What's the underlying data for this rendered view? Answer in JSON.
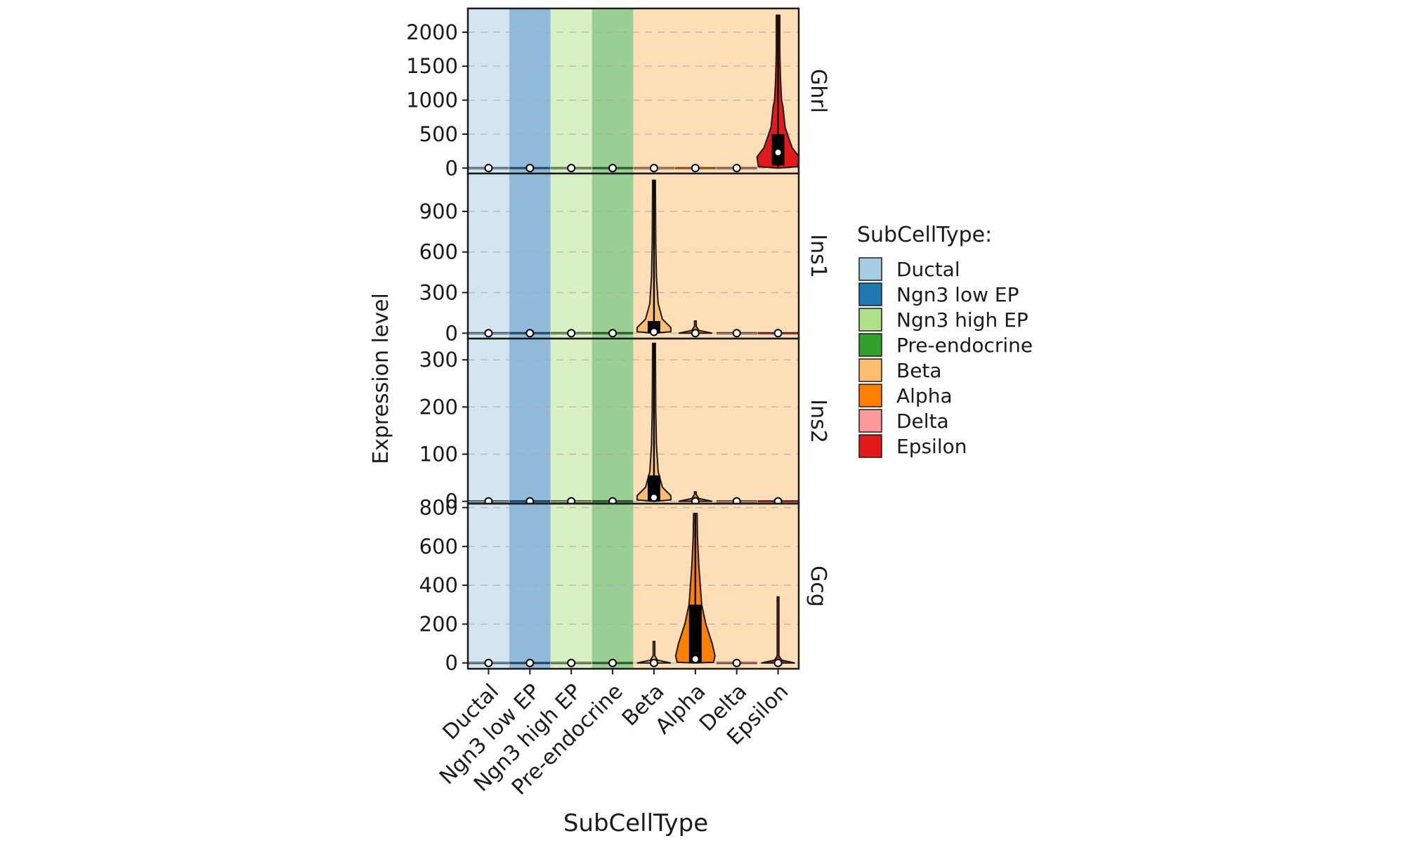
{
  "chart_data": {
    "type": "violin",
    "xlabel": "SubCellType",
    "ylabel": "Expression level",
    "categories": [
      "Ductal",
      "Ngn3 low EP",
      "Ngn3 high EP",
      "Pre-endocrine",
      "Beta",
      "Alpha",
      "Delta",
      "Epsilon"
    ],
    "category_colors": [
      "#A6CEE3",
      "#1F78B4",
      "#B2DF8A",
      "#33A02C",
      "#FDBF6F",
      "#FF7F00",
      "#FB9A99",
      "#E31A1C"
    ],
    "group_backgrounds": [
      {
        "color": "#D3E5F0",
        "from": 0,
        "to": 0
      },
      {
        "color": "#91B9DA",
        "from": 1,
        "to": 1
      },
      {
        "color": "#D9F0C4",
        "from": 2,
        "to": 2
      },
      {
        "color": "#99CF95",
        "from": 3,
        "to": 3
      },
      {
        "color": "#FDDEB7",
        "from": 4,
        "to": 7
      }
    ],
    "legend": {
      "title": "SubCellType:",
      "entries": [
        "Ductal",
        "Ngn3 low EP",
        "Ngn3 high EP",
        "Pre-endocrine",
        "Beta",
        "Alpha",
        "Delta",
        "Epsilon"
      ]
    },
    "panels": [
      {
        "gene": "Ghrl",
        "ylim": [
          -80,
          2350
        ],
        "yticks": [
          0,
          500,
          1000,
          1500,
          2000
        ],
        "violins": [
          {
            "category": 0,
            "max": 0,
            "median": 0,
            "q1": 0,
            "q3": 0,
            "shape": "flat"
          },
          {
            "category": 1,
            "max": 0,
            "median": 0,
            "q1": 0,
            "q3": 0,
            "shape": "flat"
          },
          {
            "category": 2,
            "max": 0,
            "median": 0,
            "q1": 0,
            "q3": 0,
            "shape": "flat"
          },
          {
            "category": 3,
            "max": 0,
            "median": 0,
            "q1": 0,
            "q3": 0,
            "shape": "flat"
          },
          {
            "category": 4,
            "max": 0,
            "median": 0,
            "q1": 0,
            "q3": 0,
            "shape": "flat"
          },
          {
            "category": 5,
            "max": 0,
            "median": 0,
            "q1": 0,
            "q3": 0,
            "shape": "flat"
          },
          {
            "category": 6,
            "max": 0,
            "median": 0,
            "q1": 0,
            "q3": 0,
            "shape": "flat"
          },
          {
            "category": 7,
            "max": 2250,
            "median": 230,
            "q1": 40,
            "q3": 500,
            "shape": "epsilon"
          }
        ]
      },
      {
        "gene": "Ins1",
        "ylim": [
          -40,
          1180
        ],
        "yticks": [
          0,
          300,
          600,
          900
        ],
        "violins": [
          {
            "category": 0,
            "max": 0,
            "median": 0,
            "q1": 0,
            "q3": 0,
            "shape": "flat"
          },
          {
            "category": 1,
            "max": 0,
            "median": 0,
            "q1": 0,
            "q3": 0,
            "shape": "flat"
          },
          {
            "category": 2,
            "max": 0,
            "median": 0,
            "q1": 0,
            "q3": 0,
            "shape": "flat"
          },
          {
            "category": 3,
            "max": 0,
            "median": 0,
            "q1": 0,
            "q3": 0,
            "shape": "flat"
          },
          {
            "category": 4,
            "max": 1130,
            "median": 10,
            "q1": 0,
            "q3": 90,
            "shape": "beta"
          },
          {
            "category": 5,
            "max": 90,
            "median": 0,
            "q1": 0,
            "q3": 0,
            "shape": "small"
          },
          {
            "category": 6,
            "max": 0,
            "median": 0,
            "q1": 0,
            "q3": 0,
            "shape": "flat"
          },
          {
            "category": 7,
            "max": 0,
            "median": 0,
            "q1": 0,
            "q3": 0,
            "shape": "flat"
          }
        ]
      },
      {
        "gene": "Ins2",
        "ylim": [
          -5,
          345
        ],
        "yticks": [
          0,
          100,
          200,
          300
        ],
        "violins": [
          {
            "category": 0,
            "max": 0,
            "median": 0,
            "q1": 0,
            "q3": 0,
            "shape": "flat"
          },
          {
            "category": 1,
            "max": 0,
            "median": 0,
            "q1": 0,
            "q3": 0,
            "shape": "flat"
          },
          {
            "category": 2,
            "max": 0,
            "median": 0,
            "q1": 0,
            "q3": 0,
            "shape": "flat"
          },
          {
            "category": 3,
            "max": 0,
            "median": 0,
            "q1": 0,
            "q3": 0,
            "shape": "flat"
          },
          {
            "category": 4,
            "max": 335,
            "median": 8,
            "q1": 0,
            "q3": 55,
            "shape": "beta"
          },
          {
            "category": 5,
            "max": 20,
            "median": 0,
            "q1": 0,
            "q3": 0,
            "shape": "small"
          },
          {
            "category": 6,
            "max": 0,
            "median": 0,
            "q1": 0,
            "q3": 0,
            "shape": "flat"
          },
          {
            "category": 7,
            "max": 0,
            "median": 0,
            "q1": 0,
            "q3": 0,
            "shape": "flat"
          }
        ]
      },
      {
        "gene": "Gcg",
        "ylim": [
          -30,
          820
        ],
        "yticks": [
          0,
          200,
          400,
          600,
          800
        ],
        "violins": [
          {
            "category": 0,
            "max": 0,
            "median": 0,
            "q1": 0,
            "q3": 0,
            "shape": "flat"
          },
          {
            "category": 1,
            "max": 0,
            "median": 0,
            "q1": 0,
            "q3": 0,
            "shape": "flat"
          },
          {
            "category": 2,
            "max": 0,
            "median": 0,
            "q1": 0,
            "q3": 0,
            "shape": "flat"
          },
          {
            "category": 3,
            "max": 0,
            "median": 0,
            "q1": 0,
            "q3": 0,
            "shape": "flat"
          },
          {
            "category": 4,
            "max": 110,
            "median": 0,
            "q1": 0,
            "q3": 0,
            "shape": "small"
          },
          {
            "category": 5,
            "max": 770,
            "median": 20,
            "q1": 0,
            "q3": 300,
            "shape": "alpha"
          },
          {
            "category": 6,
            "max": 0,
            "median": 0,
            "q1": 0,
            "q3": 0,
            "shape": "flat"
          },
          {
            "category": 7,
            "max": 340,
            "median": 0,
            "q1": 0,
            "q3": 0,
            "shape": "small"
          }
        ]
      }
    ]
  }
}
